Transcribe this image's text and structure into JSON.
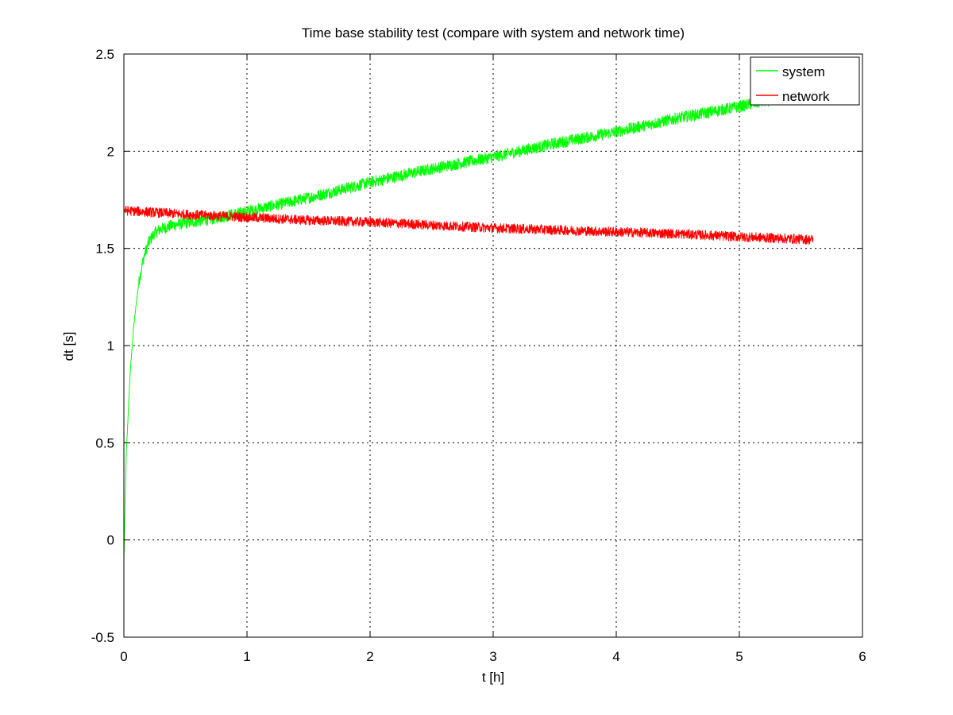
{
  "chart_data": {
    "type": "line",
    "title": "Time base stability test (compare with system and network time)",
    "xlabel": "t [h]",
    "ylabel": "dt [s]",
    "xlim": [
      0,
      6
    ],
    "ylim": [
      -0.5,
      2.5
    ],
    "xticks": [
      0,
      1,
      2,
      3,
      4,
      5,
      6
    ],
    "xtick_labels": [
      "0",
      "1",
      "2",
      "3",
      "4",
      "5",
      "6"
    ],
    "yticks": [
      -0.5,
      0,
      0.5,
      1,
      1.5,
      2,
      2.5
    ],
    "ytick_labels": [
      "-0.5",
      "0",
      "0.5",
      "1",
      "1.5",
      "2",
      "2.5"
    ],
    "grid": true,
    "legend_position": "top-right",
    "series": [
      {
        "name": "system",
        "color": "#00ff00",
        "noise_amplitude": 0.03,
        "x": [
          0,
          0.02,
          0.05,
          0.08,
          0.12,
          0.16,
          0.2,
          0.25,
          0.3,
          0.4,
          0.5,
          0.7,
          1.0,
          1.5,
          2.0,
          2.5,
          3.0,
          3.5,
          4.0,
          4.5,
          5.0,
          5.3,
          5.6
        ],
        "y": [
          -0.1,
          0.45,
          0.85,
          1.1,
          1.32,
          1.45,
          1.53,
          1.58,
          1.6,
          1.62,
          1.63,
          1.65,
          1.69,
          1.76,
          1.84,
          1.91,
          1.97,
          2.04,
          2.1,
          2.17,
          2.23,
          2.27,
          2.32
        ]
      },
      {
        "name": "network",
        "color": "#ff0000",
        "noise_amplitude": 0.025,
        "x": [
          0,
          0.5,
          1.0,
          1.5,
          2.0,
          2.5,
          3.0,
          3.5,
          4.0,
          4.5,
          5.0,
          5.6
        ],
        "y": [
          1.695,
          1.675,
          1.66,
          1.645,
          1.635,
          1.62,
          1.605,
          1.595,
          1.585,
          1.575,
          1.56,
          1.545
        ]
      }
    ]
  }
}
